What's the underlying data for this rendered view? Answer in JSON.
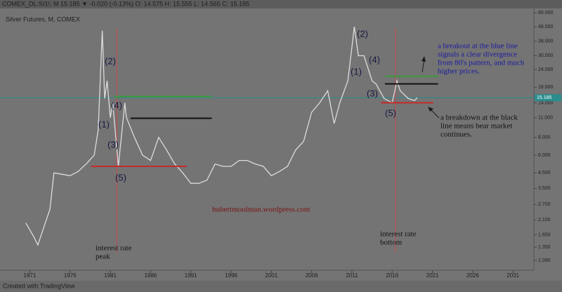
{
  "chart_data": {
    "type": "line",
    "title": "COMEX_DL:SI1!, M 15.185 ▼ -0.020 (-0.13%) O: 14.575 H: 15.555 L: 14.565 C: 15.185",
    "subtitle": "Silver Futures, M, COMEX",
    "footer": "Created with TradingView",
    "log_scale": true,
    "xlim": [
      1967.3,
      2033.6
    ],
    "ylim": [
      0.93,
      66
    ],
    "xticks": [
      1971,
      1976,
      1981,
      1986,
      1991,
      1996,
      2001,
      2006,
      2011,
      2016,
      2021,
      2026,
      2031
    ],
    "yticks": [
      {
        "value": 60,
        "label": "60.000"
      },
      {
        "value": 48,
        "label": "48.000"
      },
      {
        "value": 38,
        "label": "38.000"
      },
      {
        "value": 30,
        "label": "30.000"
      },
      {
        "value": 24,
        "label": "24.000"
      },
      {
        "value": 18,
        "label": "18.000"
      },
      {
        "value": 14,
        "label": "14.000"
      },
      {
        "value": 11,
        "label": "11.000"
      },
      {
        "value": 8,
        "label": "8.000"
      },
      {
        "value": 6,
        "label": "6.000"
      },
      {
        "value": 4.5,
        "label": "4.500"
      },
      {
        "value": 3.5,
        "label": "3.500"
      },
      {
        "value": 2.7,
        "label": "2.700"
      },
      {
        "value": 2.1,
        "label": "2.100"
      },
      {
        "value": 1.65,
        "label": "1.650"
      },
      {
        "value": 1.35,
        "label": "1.350"
      },
      {
        "value": 1.09,
        "label": "1.090"
      }
    ],
    "last_price": {
      "value": 15.185,
      "label": "15.185",
      "color": "#2a8c8c"
    },
    "series": [
      {
        "name": "Silver Futures",
        "color": "#dcdcdc",
        "x": [
          1970.5,
          1971.5,
          1972,
          1972.5,
          1973.5,
          1974,
          1975,
          1976,
          1977,
          1978,
          1979,
          1979.5,
          1980,
          1980.3,
          1980.6,
          1981,
          1981.3,
          1982,
          1982.8,
          1983,
          1984,
          1985,
          1986,
          1987,
          1988,
          1989,
          1990,
          1991,
          1992,
          1993,
          1994,
          1995,
          1996,
          1997,
          1998,
          1999,
          2000,
          2001,
          2002,
          2003,
          2004,
          2005,
          2006,
          2007,
          2008,
          2008.8,
          2009.5,
          2010.5,
          2011.3,
          2011.8,
          2012.5,
          2013.5,
          2014,
          2015,
          2016,
          2016.6,
          2017,
          2018,
          2018.8,
          2019.1
        ],
        "values": [
          2.0,
          1.6,
          1.4,
          1.7,
          2.5,
          4.5,
          4.4,
          4.3,
          4.6,
          5.2,
          6,
          9,
          45,
          15,
          20,
          11,
          14,
          5,
          14,
          11,
          8,
          6,
          5.5,
          8,
          6.5,
          5.2,
          4.5,
          3.8,
          3.8,
          4,
          5.2,
          5.0,
          5.0,
          5.5,
          5.5,
          5.2,
          5,
          4.3,
          4.6,
          5,
          6.5,
          7.5,
          12,
          14,
          17,
          10,
          14,
          20,
          48,
          30,
          30,
          20,
          19,
          15,
          14,
          20,
          17,
          15,
          14.5,
          15.2
        ]
      }
    ],
    "levels": [
      {
        "color": "#3c9a3c",
        "value": 15.5,
        "x": [
          1981.5,
          1993.6
        ]
      },
      {
        "color": "#111111",
        "value": 10.9,
        "x": [
          1983.5,
          1993.6
        ]
      },
      {
        "color": "#c42a2a",
        "value": 5,
        "x": [
          1978.6,
          1990.5
        ]
      },
      {
        "color": "#3c9a3c",
        "value": 21.5,
        "x": [
          2015.1,
          2021.7
        ]
      },
      {
        "color": "#111111",
        "value": 19,
        "x": [
          2015.1,
          2021.7
        ]
      },
      {
        "color": "#c42a2a",
        "value": 14,
        "x": [
          2014.6,
          2021.1
        ]
      }
    ],
    "vlines": [
      {
        "color": "#c84a4a",
        "x": 1981.8
      },
      {
        "color": "#c84a4a",
        "x": 2016.4
      }
    ],
    "waves": [
      "(1)",
      "(2)",
      "(3)",
      "(4)",
      "(5)",
      "(1)",
      "(2)",
      "(3)",
      "(4)",
      "(5)"
    ],
    "watermark": "hubertmoolman.wordpress.com",
    "notes": [
      [
        "interest rate",
        "peak"
      ],
      [
        "interest rate",
        "bottom"
      ],
      [
        "a breakout at the blue line",
        "signals a clear divergence",
        "from 80's pattern, and much",
        "higher prices."
      ],
      [
        "a breakdown at the black",
        "line means bear market",
        "continues."
      ]
    ]
  }
}
